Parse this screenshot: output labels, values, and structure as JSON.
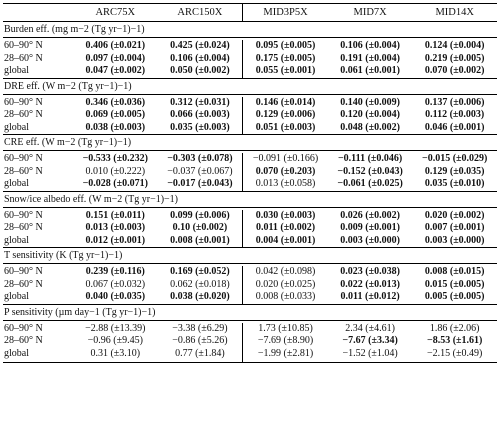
{
  "header": {
    "row_label": "",
    "columns": [
      "ARC75X",
      "ARC150X",
      "MID3P5X",
      "MID7X",
      "MID14X"
    ]
  },
  "sections": [
    {
      "title": "Burden eff. (mg m−2 (Tg yr−1)−1)",
      "rows": [
        {
          "label": "60–90° N",
          "cells": [
            {
              "v": "0.406 (±0.021)",
              "bold": true
            },
            {
              "v": "0.425 (±0.024)",
              "bold": true
            },
            {
              "v": "0.095 (±0.005)",
              "bold": true
            },
            {
              "v": "0.106 (±0.004)",
              "bold": true
            },
            {
              "v": "0.124 (±0.004)",
              "bold": true
            }
          ]
        },
        {
          "label": "28–60° N",
          "cells": [
            {
              "v": "0.097 (±0.004)",
              "bold": true
            },
            {
              "v": "0.106 (±0.004)",
              "bold": true
            },
            {
              "v": "0.175 (±0.005)",
              "bold": true
            },
            {
              "v": "0.191 (±0.004)",
              "bold": true
            },
            {
              "v": "0.219 (±0.005)",
              "bold": true
            }
          ]
        },
        {
          "label": "global",
          "cells": [
            {
              "v": "0.047 (±0.002)",
              "bold": true
            },
            {
              "v": "0.050 (±0.002)",
              "bold": true
            },
            {
              "v": "0.055 (±0.001)",
              "bold": true
            },
            {
              "v": "0.061 (±0.001)",
              "bold": true
            },
            {
              "v": "0.070 (±0.002)",
              "bold": true
            }
          ]
        }
      ]
    },
    {
      "title": "DRE eff. (W m−2 (Tg yr−1)−1)",
      "rows": [
        {
          "label": "60–90° N",
          "cells": [
            {
              "v": "0.346 (±0.036)",
              "bold": true
            },
            {
              "v": "0.312 (±0.031)",
              "bold": true
            },
            {
              "v": "0.146 (±0.014)",
              "bold": true
            },
            {
              "v": "0.140 (±0.009)",
              "bold": true
            },
            {
              "v": "0.137 (±0.006)",
              "bold": true
            }
          ]
        },
        {
          "label": "28–60° N",
          "cells": [
            {
              "v": "0.069 (±0.005)",
              "bold": true
            },
            {
              "v": "0.066 (±0.003)",
              "bold": true
            },
            {
              "v": "0.129 (±0.006)",
              "bold": true
            },
            {
              "v": "0.120 (±0.004)",
              "bold": true
            },
            {
              "v": "0.112 (±0.003)",
              "bold": true
            }
          ]
        },
        {
          "label": "global",
          "cells": [
            {
              "v": "0.038 (±0.003)",
              "bold": true
            },
            {
              "v": "0.035 (±0.003)",
              "bold": true
            },
            {
              "v": "0.051 (±0.003)",
              "bold": true
            },
            {
              "v": "0.048 (±0.002)",
              "bold": true
            },
            {
              "v": "0.046 (±0.001)",
              "bold": true
            }
          ]
        }
      ]
    },
    {
      "title": "CRE eff. (W m−2 (Tg yr−1)−1)",
      "rows": [
        {
          "label": "60–90° N",
          "cells": [
            {
              "v": "−0.533 (±0.232)",
              "bold": true
            },
            {
              "v": "−0.303 (±0.078)",
              "bold": true
            },
            {
              "v": "−0.091 (±0.166)",
              "bold": false
            },
            {
              "v": "−0.111 (±0.046)",
              "bold": true
            },
            {
              "v": "−0.015 (±0.029)",
              "bold": true
            }
          ]
        },
        {
          "label": "28–60° N",
          "cells": [
            {
              "v": "0.010 (±0.222)",
              "bold": false
            },
            {
              "v": "−0.037 (±0.067)",
              "bold": false
            },
            {
              "v": "0.070 (±0.203)",
              "bold": true
            },
            {
              "v": "−0.152 (±0.043)",
              "bold": true
            },
            {
              "v": "0.129 (±0.035)",
              "bold": true
            }
          ]
        },
        {
          "label": "global",
          "cells": [
            {
              "v": "−0.028 (±0.071)",
              "bold": true
            },
            {
              "v": "−0.017 (±0.043)",
              "bold": true
            },
            {
              "v": "0.013 (±0.058)",
              "bold": false
            },
            {
              "v": "−0.061 (±0.025)",
              "bold": true
            },
            {
              "v": "0.035 (±0.010)",
              "bold": true
            }
          ]
        }
      ]
    },
    {
      "title": "Snow/ice albedo eff. (W m−2 (Tg yr−1)−1)",
      "rows": [
        {
          "label": "60–90° N",
          "cells": [
            {
              "v": "0.151 (±0.011)",
              "bold": true
            },
            {
              "v": "0.099 (±0.006)",
              "bold": true
            },
            {
              "v": "0.030 (±0.003)",
              "bold": true
            },
            {
              "v": "0.026 (±0.002)",
              "bold": true
            },
            {
              "v": "0.020 (±0.002)",
              "bold": true
            }
          ]
        },
        {
          "label": "28–60° N",
          "cells": [
            {
              "v": "0.013 (±0.003)",
              "bold": true
            },
            {
              "v": "0.10 (±0.002)",
              "bold": true
            },
            {
              "v": "0.011 (±0.002)",
              "bold": true
            },
            {
              "v": "0.009 (±0.001)",
              "bold": true
            },
            {
              "v": "0.007 (±0.001)",
              "bold": true
            }
          ]
        },
        {
          "label": "global",
          "cells": [
            {
              "v": "0.012 (±0.001)",
              "bold": true
            },
            {
              "v": "0.008 (±0.001)",
              "bold": true
            },
            {
              "v": "0.004 (±0.001)",
              "bold": true
            },
            {
              "v": "0.003 (±0.000)",
              "bold": true
            },
            {
              "v": "0.003 (±0.000)",
              "bold": true
            }
          ]
        }
      ]
    },
    {
      "title": "T sensitivity (K (Tg yr−1)−1)",
      "rows": [
        {
          "label": "60–90° N",
          "cells": [
            {
              "v": "0.239 (±0.116)",
              "bold": true
            },
            {
              "v": "0.169 (±0.052)",
              "bold": true
            },
            {
              "v": "0.042 (±0.098)",
              "bold": false
            },
            {
              "v": "0.023 (±0.038)",
              "bold": true
            },
            {
              "v": "0.008 (±0.015)",
              "bold": true
            }
          ]
        },
        {
          "label": "28–60° N",
          "cells": [
            {
              "v": "0.067 (±0.032)",
              "bold": false
            },
            {
              "v": "0.062 (±0.018)",
              "bold": false
            },
            {
              "v": "0.020 (±0.025)",
              "bold": false
            },
            {
              "v": "0.022 (±0.013)",
              "bold": true
            },
            {
              "v": "0.015 (±0.005)",
              "bold": true
            }
          ]
        },
        {
          "label": "global",
          "cells": [
            {
              "v": "0.040 (±0.035)",
              "bold": true
            },
            {
              "v": "0.038 (±0.020)",
              "bold": true
            },
            {
              "v": "0.008 (±0.033)",
              "bold": false
            },
            {
              "v": "0.011 (±0.012)",
              "bold": true
            },
            {
              "v": "0.005 (±0.005)",
              "bold": true
            }
          ]
        }
      ]
    },
    {
      "title": "P sensitivity (µm day−1 (Tg yr−1)−1)",
      "rows": [
        {
          "label": "60–90° N",
          "cells": [
            {
              "v": "−2.88 (±13.39)",
              "bold": false
            },
            {
              "v": "−3.38 (±6.29)",
              "bold": false
            },
            {
              "v": "1.73 (±10.85)",
              "bold": false
            },
            {
              "v": "2.34 (±4.61)",
              "bold": false
            },
            {
              "v": "1.86 (±2.06)",
              "bold": false
            }
          ]
        },
        {
          "label": "28–60° N",
          "cells": [
            {
              "v": "−0.96 (±9.45)",
              "bold": false
            },
            {
              "v": "−0.86 (±5.26)",
              "bold": false
            },
            {
              "v": "−7.69 (±8.90)",
              "bold": false
            },
            {
              "v": "−7.67 (±3.34)",
              "bold": true
            },
            {
              "v": "−8.53 (±1.61)",
              "bold": true
            }
          ]
        },
        {
          "label": "global",
          "cells": [
            {
              "v": "0.31 (±3.10)",
              "bold": false
            },
            {
              "v": "0.77 (±1.84)",
              "bold": false
            },
            {
              "v": "−1.99 (±2.81)",
              "bold": false
            },
            {
              "v": "−1.52 (±1.04)",
              "bold": false
            },
            {
              "v": "−2.15 (±0.49)",
              "bold": false
            }
          ]
        }
      ]
    }
  ]
}
